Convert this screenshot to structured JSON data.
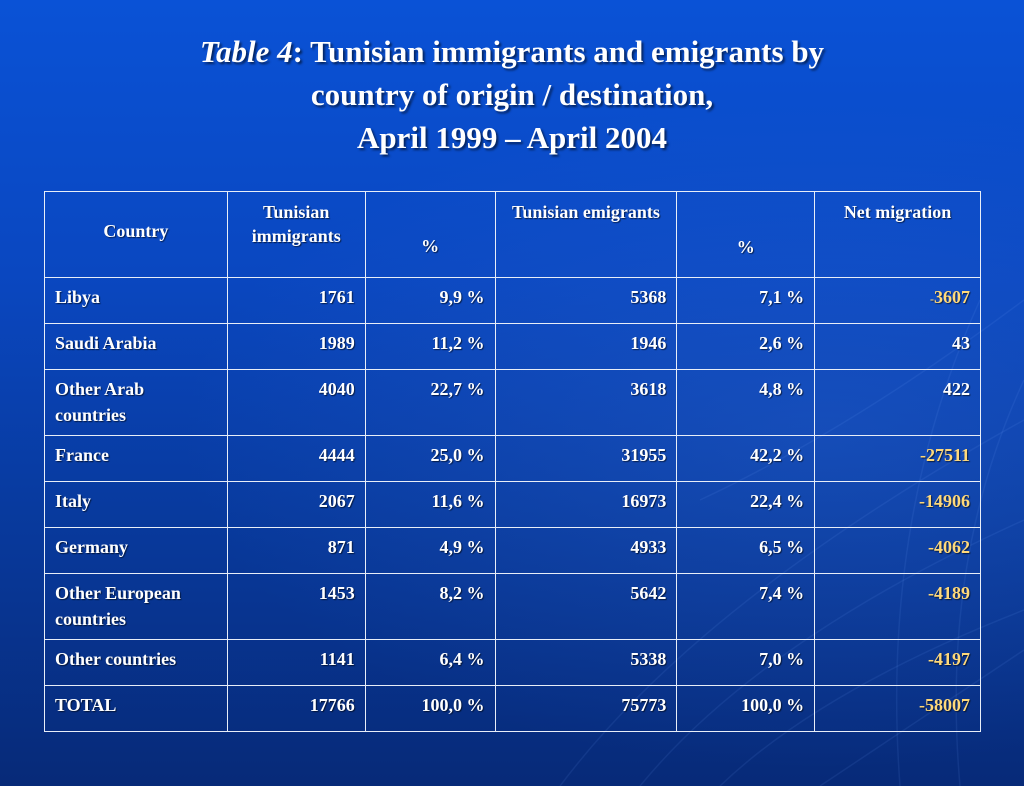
{
  "title": {
    "italic_part": "Table 4",
    "line1_rest": ":  Tunisian immigrants and emigrants by",
    "line2": "country of origin / destination,",
    "line3": "April 1999 – April 2004"
  },
  "colors": {
    "background_top": "#0a52d6",
    "background_bottom": "#072a78",
    "net_negative": "#ffd97a",
    "text": "#ffffff",
    "border": "#e8eef8"
  },
  "table": {
    "headers": {
      "country": "Country",
      "immigrants": "Tunisian immigrants",
      "immigrants_pct": "%",
      "emigrants": "Tunisian emigrants",
      "emigrants_pct": "%",
      "net": "Net migration"
    },
    "rows": [
      {
        "country": "Libya",
        "immigrants": "1761",
        "immigrants_pct": "9,9 %",
        "emigrants": "5368",
        "emigrants_pct": "7,1 %",
        "net_sign": "-",
        "net_value": "3607"
      },
      {
        "country": "Saudi Arabia",
        "immigrants": "1989",
        "immigrants_pct": "11,2 %",
        "emigrants": "1946",
        "emigrants_pct": "2,6 %",
        "net": "43"
      },
      {
        "country": "Other Arab countries",
        "immigrants": "4040",
        "immigrants_pct": "22,7 %",
        "emigrants": "3618",
        "emigrants_pct": "4,8 %",
        "net": "422"
      },
      {
        "country": "France",
        "immigrants": "4444",
        "immigrants_pct": "25,0 %",
        "emigrants": "31955",
        "emigrants_pct": "42,2 %",
        "net": "-27511"
      },
      {
        "country": "Italy",
        "immigrants": "2067",
        "immigrants_pct": "11,6 %",
        "emigrants": "16973",
        "emigrants_pct": "22,4 %",
        "net": "-14906"
      },
      {
        "country": "Germany",
        "immigrants": "871",
        "immigrants_pct": "4,9 %",
        "emigrants": "4933",
        "emigrants_pct": "6,5 %",
        "net": "-4062"
      },
      {
        "country": "Other European countries",
        "immigrants": "1453",
        "immigrants_pct": "8,2 %",
        "emigrants": "5642",
        "emigrants_pct": "7,4 %",
        "net": "-4189"
      },
      {
        "country": "Other countries",
        "immigrants": "1141",
        "immigrants_pct": "6,4 %",
        "emigrants": "5338",
        "emigrants_pct": "7,0 %",
        "net": "-4197"
      },
      {
        "country": "TOTAL",
        "immigrants": "17766",
        "immigrants_pct": "100,0 %",
        "emigrants": "75773",
        "emigrants_pct": "100,0 %",
        "net": "-58007"
      }
    ]
  }
}
